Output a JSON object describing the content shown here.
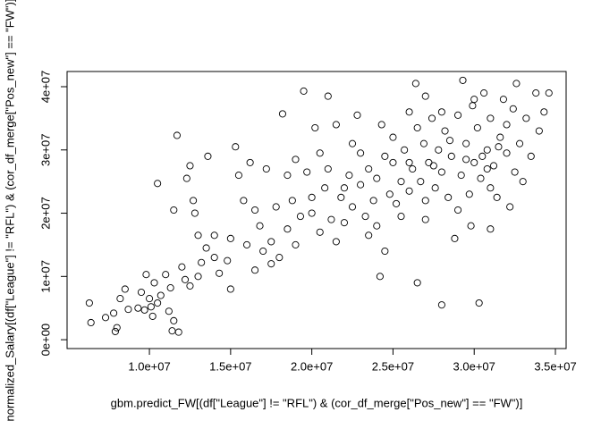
{
  "chart_data": {
    "type": "scatter",
    "xlabel": "gbm.predict_FW[(df[\"League\"] != \"RFL\") & (cor_df_merge[\"Pos_new\"] == \"FW\")]",
    "ylabel": "normalized_Salary[(df[\"League\"] != \"RFL\") & (cor_df_merge[\"Pos_new\"] == \"FW\")]",
    "color": "#000000",
    "xlim": [
      4930000,
      35660000
    ],
    "ylim": [
      -1400000,
      42400000
    ],
    "xticks": [
      {
        "value": 10000000,
        "label": "1.0e+07"
      },
      {
        "value": 15000000,
        "label": "1.5e+07"
      },
      {
        "value": 20000000,
        "label": "2.0e+07"
      },
      {
        "value": 25000000,
        "label": "2.5e+07"
      },
      {
        "value": 30000000,
        "label": "3.0e+07"
      },
      {
        "value": 35000000,
        "label": "3.5e+07"
      }
    ],
    "yticks": [
      {
        "value": 0,
        "label": "0e+00"
      },
      {
        "value": 10000000,
        "label": "1e+07"
      },
      {
        "value": 20000000,
        "label": "2e+07"
      },
      {
        "value": 30000000,
        "label": "3e+07"
      },
      {
        "value": 40000000,
        "label": "4e+07"
      }
    ],
    "x": [
      6300000.0,
      6400000.0,
      7300000.0,
      7800000.0,
      7900000.0,
      8000000.0,
      8200000.0,
      8500000.0,
      8700000.0,
      9300000.0,
      9500000.0,
      9700000.0,
      9800000.0,
      10000000.0,
      10100000.0,
      10200000.0,
      10300000.0,
      10500000.0,
      10700000.0,
      11000000.0,
      11200000.0,
      11300000.0,
      11500000.0,
      11400000.0,
      11800000.0,
      11500000.0,
      12000000.0,
      12200000.0,
      12500000.0,
      12300000.0,
      12700000.0,
      12800000.0,
      13000000.0,
      13200000.0,
      13500000.0,
      10500000.0,
      11700000.0,
      12500000.0,
      13600000.0,
      14000000.0,
      14300000.0,
      14800000.0,
      15000000.0,
      15300000.0,
      15500000.0,
      15800000.0,
      16000000.0,
      16200000.0,
      16500000.0,
      16800000.0,
      17000000.0,
      17200000.0,
      17500000.0,
      17800000.0,
      18000000.0,
      18200000.0,
      18500000.0,
      18800000.0,
      19000000.0,
      19300000.0,
      19500000.0,
      19700000.0,
      20000000.0,
      20200000.0,
      20500000.0,
      20800000.0,
      21000000.0,
      21200000.0,
      21500000.0,
      21800000.0,
      22000000.0,
      22300000.0,
      22500000.0,
      22800000.0,
      23000000.0,
      23300000.0,
      23500000.0,
      23800000.0,
      24000000.0,
      24200000.0,
      24500000.0,
      24300000.0,
      24800000.0,
      25000000.0,
      25200000.0,
      25500000.0,
      25700000.0,
      26000000.0,
      26200000.0,
      26400000.0,
      26500000.0,
      26700000.0,
      26900000.0,
      27000000.0,
      27200000.0,
      27400000.0,
      27600000.0,
      27800000.0,
      28000000.0,
      28000000.0,
      28200000.0,
      28400000.0,
      28600000.0,
      28800000.0,
      29000000.0,
      29200000.0,
      29300000.0,
      29500000.0,
      29700000.0,
      29900000.0,
      30000000.0,
      30200000.0,
      30300000.0,
      30400000.0,
      30600000.0,
      30800000.0,
      31000000.0,
      31000000.0,
      31200000.0,
      31400000.0,
      31600000.0,
      31800000.0,
      32000000.0,
      32200000.0,
      32400000.0,
      32600000.0,
      32800000.0,
      33000000.0,
      33200000.0,
      33500000.0,
      33800000.0,
      34000000.0,
      34300000.0,
      34600000.0,
      20000000.0,
      21000000.0,
      22000000.0,
      23000000.0,
      24000000.0,
      25000000.0,
      26000000.0,
      27000000.0,
      28000000.0,
      29000000.0,
      30000000.0,
      31000000.0,
      32000000.0,
      26500000.0,
      27500000.0,
      28500000.0,
      29500000.0,
      30500000.0,
      31500000.0,
      25500000.0,
      24500000.0,
      23500000.0,
      22500000.0,
      16500000.0,
      17500000.0,
      15000000.0,
      14000000.0,
      13000000.0,
      18500000.0,
      19000000.0,
      20500000.0,
      21500000.0,
      26000000.0,
      27000000.0,
      29800000.0,
      30800000.0,
      32500000.0
    ],
    "values": [
      5800000.0,
      2700000.0,
      3500000.0,
      4200000.0,
      1300000.0,
      1900000.0,
      6500000.0,
      8000000.0,
      4800000.0,
      5000000.0,
      7500000.0,
      4700000.0,
      10300000.0,
      6500000.0,
      5200000.0,
      3700000.0,
      9000000.0,
      5800000.0,
      7000000.0,
      10300000.0,
      4500000.0,
      8200000.0,
      3000000.0,
      1400000.0,
      1200000.0,
      20500000.0,
      11500000.0,
      9500000.0,
      8500000.0,
      25500000.0,
      22000000.0,
      20000000.0,
      16500000.0,
      12200000.0,
      14500000.0,
      24700000.0,
      32300000.0,
      27500000.0,
      29000000.0,
      13000000.0,
      10500000.0,
      12500000.0,
      16000000.0,
      30500000.0,
      26000000.0,
      22000000.0,
      15000000.0,
      28000000.0,
      11000000.0,
      18000000.0,
      14000000.0,
      27000000.0,
      15500000.0,
      21000000.0,
      13000000.0,
      35700000.0,
      17500000.0,
      22000000.0,
      15000000.0,
      19500000.0,
      39300000.0,
      26500000.0,
      20000000.0,
      33500000.0,
      17000000.0,
      24000000.0,
      38500000.0,
      19000000.0,
      34000000.0,
      22500000.0,
      18500000.0,
      26000000.0,
      21000000.0,
      35500000.0,
      24500000.0,
      19500000.0,
      27000000.0,
      22000000.0,
      25500000.0,
      10000000.0,
      14000000.0,
      34000000.0,
      23000000.0,
      28000000.0,
      21500000.0,
      25000000.0,
      30000000.0,
      23500000.0,
      27000000.0,
      40500000.0,
      9000000.0,
      25000000.0,
      31000000.0,
      22000000.0,
      28000000.0,
      35000000.0,
      24000000.0,
      30000000.0,
      5500000.0,
      26500000.0,
      33000000.0,
      22500000.0,
      29000000.0,
      16000000.0,
      35500000.0,
      26000000.0,
      41000000.0,
      31000000.0,
      23000000.0,
      37000000.0,
      28000000.0,
      33500000.0,
      5800000.0,
      25500000.0,
      39000000.0,
      30000000.0,
      17500000.0,
      35000000.0,
      27500000.0,
      22500000.0,
      32000000.0,
      38000000.0,
      29500000.0,
      21000000.0,
      36500000.0,
      40500000.0,
      31000000.0,
      25000000.0,
      35000000.0,
      29000000.0,
      39000000.0,
      33000000.0,
      36000000.0,
      39000000.0,
      22500000.0,
      27000000.0,
      24000000.0,
      29500000.0,
      18000000.0,
      32000000.0,
      28000000.0,
      19000000.0,
      36000000.0,
      20500000.0,
      38000000.0,
      24000000.0,
      34000000.0,
      33500000.0,
      27500000.0,
      31500000.0,
      28500000.0,
      29000000.0,
      30500000.0,
      19500000.0,
      29000000.0,
      16500000.0,
      31000000.0,
      20500000.0,
      12000000.0,
      8000000.0,
      16500000.0,
      10000000.0,
      26000000.0,
      28500000.0,
      29500000.0,
      15500000.0,
      36000000.0,
      38500000.0,
      18000000.0,
      27000000.0,
      26500000.0
    ]
  }
}
